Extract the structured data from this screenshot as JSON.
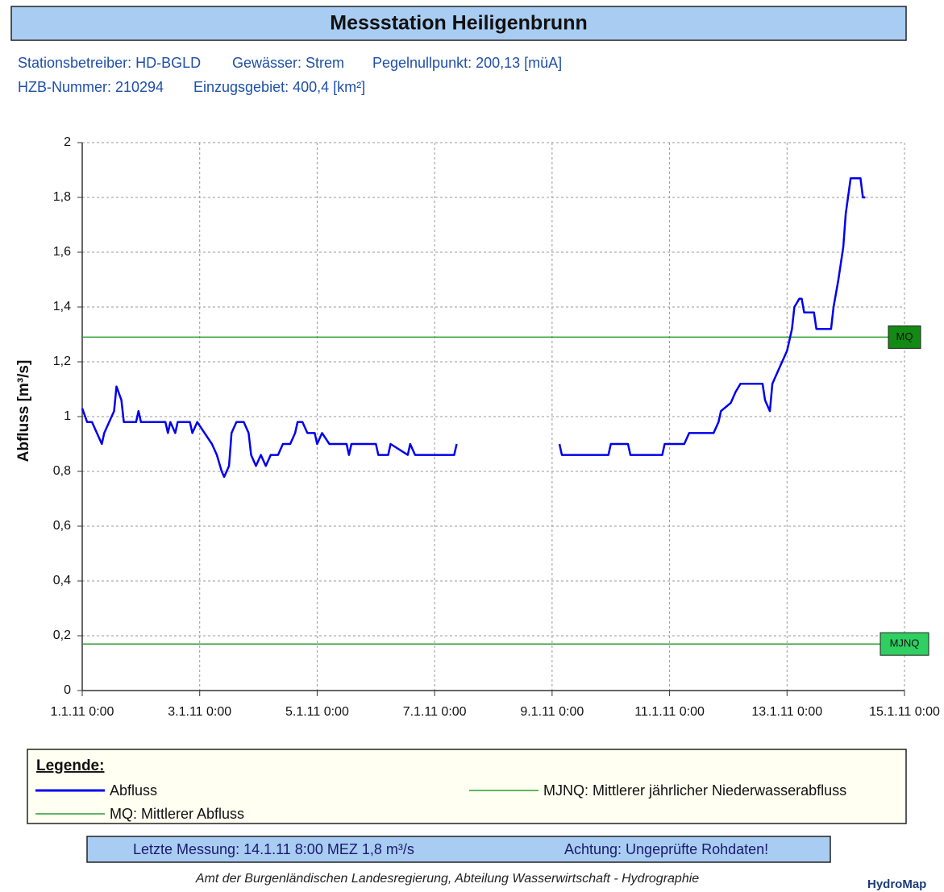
{
  "chart_data": {
    "type": "line",
    "title": "Messstation Heiligenbrunn",
    "info": [
      [
        "Stationsbetreiber: HD-BGLD",
        "Gewässer: Strem",
        "Pegelnullpunkt: 200,13 [müA]"
      ],
      [
        "HZB-Nummer: 210294",
        "Einzugsgebiet: 400,4 [km²]"
      ]
    ],
    "y_label": "Abfluss [m³/s]",
    "x": [
      "2011-01-01T00:00",
      "2011-01-01T02:00",
      "2011-01-01T04:00",
      "2011-01-01T06:00",
      "2011-01-01T08:00",
      "2011-01-01T09:00",
      "2011-01-01T11:00",
      "2011-01-01T13:00",
      "2011-01-01T14:00",
      "2011-01-01T16:00",
      "2011-01-01T17:00",
      "2011-01-01T22:00",
      "2011-01-01T23:00",
      "2011-01-02T00:00",
      "2011-01-02T10:00",
      "2011-01-02T11:00",
      "2011-01-02T12:00",
      "2011-01-02T14:00",
      "2011-01-02T15:00",
      "2011-01-02T20:00",
      "2011-01-02T21:00",
      "2011-01-02T23:00",
      "2011-01-03T02:00",
      "2011-01-03T05:00",
      "2011-01-03T07:00",
      "2011-01-03T09:00",
      "2011-01-03T10:00",
      "2011-01-03T12:00",
      "2011-01-03T13:00",
      "2011-01-03T15:00",
      "2011-01-03T18:00",
      "2011-01-03T20:00",
      "2011-01-03T21:00",
      "2011-01-03T23:00",
      "2011-01-04T01:00",
      "2011-01-04T03:00",
      "2011-01-04T05:00",
      "2011-01-04T08:00",
      "2011-01-04T10:00",
      "2011-01-04T13:00",
      "2011-01-04T15:00",
      "2011-01-04T16:00",
      "2011-01-04T18:00",
      "2011-01-04T20:00",
      "2011-01-04T23:00",
      "2011-01-05T00:00",
      "2011-01-05T02:00",
      "2011-01-05T05:00",
      "2011-01-05T12:00",
      "2011-01-05T13:00",
      "2011-01-05T14:00",
      "2011-01-06T00:00",
      "2011-01-06T01:00",
      "2011-01-06T05:00",
      "2011-01-06T06:00",
      "2011-01-06T13:00",
      "2011-01-06T14:00",
      "2011-01-06T16:00",
      "2011-01-07T08:00",
      "2011-01-07T09:00",
      "2011-01-08T06:00",
      "2011-01-09T03:00",
      "2011-01-09T04:00",
      "2011-01-09T23:00",
      "2011-01-10T00:00",
      "2011-01-10T07:00",
      "2011-01-10T08:00",
      "2011-01-10T21:00",
      "2011-01-10T22:00",
      "2011-01-11T06:00",
      "2011-01-11T08:00",
      "2011-01-11T18:00",
      "2011-01-11T20:00",
      "2011-01-11T21:00",
      "2011-01-12T01:00",
      "2011-01-12T03:00",
      "2011-01-12T05:00",
      "2011-01-12T14:00",
      "2011-01-12T15:00",
      "2011-01-12T17:00",
      "2011-01-12T18:00",
      "2011-01-12T20:00",
      "2011-01-12T22:00",
      "2011-01-13T00:00",
      "2011-01-13T02:00",
      "2011-01-13T03:00",
      "2011-01-13T05:00",
      "2011-01-13T06:00",
      "2011-01-13T07:00",
      "2011-01-13T11:00",
      "2011-01-13T12:00",
      "2011-01-13T18:00",
      "2011-01-13T19:00",
      "2011-01-13T21:00",
      "2011-01-13T23:00",
      "2011-01-14T00:00",
      "2011-01-14T02:00",
      "2011-01-14T06:00",
      "2011-01-14T07:00",
      "2011-01-14T08:00"
    ],
    "series": [
      {
        "name": "Abfluss",
        "color": "#0000ee",
        "values": [
          1.03,
          0.98,
          0.98,
          0.94,
          0.9,
          0.94,
          0.98,
          1.02,
          1.11,
          1.06,
          0.98,
          0.98,
          1.02,
          0.98,
          0.98,
          0.94,
          0.98,
          0.94,
          0.98,
          0.98,
          0.94,
          0.98,
          0.94,
          0.9,
          0.86,
          0.8,
          0.78,
          0.82,
          0.94,
          0.98,
          0.98,
          0.94,
          0.86,
          0.82,
          0.86,
          0.82,
          0.86,
          0.86,
          0.9,
          0.9,
          0.94,
          0.98,
          0.98,
          0.94,
          0.94,
          0.9,
          0.94,
          0.9,
          0.9,
          0.86,
          0.9,
          0.9,
          0.86,
          0.86,
          0.9,
          0.86,
          0.9,
          0.86,
          0.86,
          0.9,
          null,
          0.9,
          0.86,
          0.86,
          0.9,
          0.9,
          0.86,
          0.86,
          0.9,
          0.9,
          0.94,
          0.94,
          0.98,
          1.02,
          1.05,
          1.09,
          1.12,
          1.12,
          1.06,
          1.02,
          1.12,
          1.16,
          1.2,
          1.24,
          1.32,
          1.4,
          1.43,
          1.43,
          1.38,
          1.38,
          1.32,
          1.32,
          1.4,
          1.5,
          1.62,
          1.74,
          1.87,
          1.87,
          1.8,
          1.8
        ]
      }
    ],
    "reference_lines": [
      {
        "label": "MQ",
        "legend": "MQ: Mittlerer Abfluss",
        "value": 1.29,
        "color": "#2e9b2e",
        "box_color": "#138a13"
      },
      {
        "label": "MJNQ",
        "legend": "MJNQ: Mittlerer jährlicher Niederwasserabfluss",
        "value": 0.17,
        "color": "#2e9b2e",
        "box_color": "#2fcf62"
      }
    ],
    "xlim": [
      "2011-01-01T00:00",
      "2011-01-15T00:00"
    ],
    "xticks": [
      {
        "value": "2011-01-01T00:00",
        "label": "1.1.11 0:00"
      },
      {
        "value": "2011-01-03T00:00",
        "label": "3.1.11 0:00"
      },
      {
        "value": "2011-01-05T00:00",
        "label": "5.1.11 0:00"
      },
      {
        "value": "2011-01-07T00:00",
        "label": "7.1.11 0:00"
      },
      {
        "value": "2011-01-09T00:00",
        "label": "9.1.11 0:00"
      },
      {
        "value": "2011-01-11T00:00",
        "label": "11.1.11 0:00"
      },
      {
        "value": "2011-01-13T00:00",
        "label": "13.1.11 0:00"
      },
      {
        "value": "2011-01-15T00:00",
        "label": "15.1.11 0:00"
      }
    ],
    "ylim": [
      0,
      2
    ],
    "yticks": [
      0,
      {
        "value": 0.2,
        "label": "0,2"
      },
      {
        "value": 0.4,
        "label": "0,4"
      },
      {
        "value": 0.6,
        "label": "0,6"
      },
      {
        "value": 0.8,
        "label": "0,8"
      },
      1,
      {
        "value": 1.2,
        "label": "1,2"
      },
      {
        "value": 1.4,
        "label": "1,4"
      },
      {
        "value": 1.6,
        "label": "1,6"
      },
      {
        "value": 1.8,
        "label": "1,8"
      },
      2
    ],
    "grid": true,
    "legend_title": "Legende:",
    "status": [
      "Letzte Messung:  14.1.11 8:00 MEZ   1,8 m³/s",
      "Achtung: Ungeprüfte Rohdaten!"
    ],
    "footer": "Amt der Burgenländischen Landesregierung, Abteilung Wasserwirtschaft - Hydrographie",
    "brand": "HydroMap"
  }
}
